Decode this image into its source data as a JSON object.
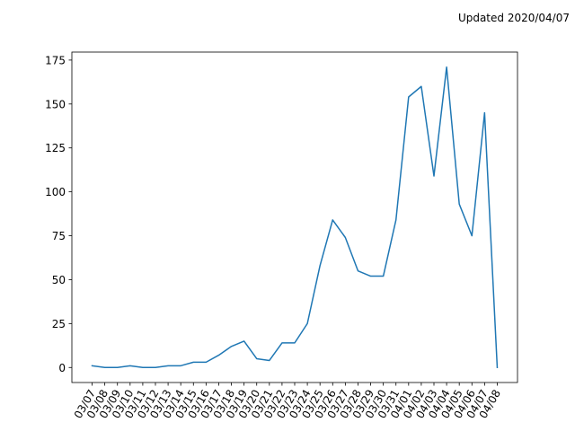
{
  "annotation": "Updated 2020/04/07",
  "chart_data": {
    "type": "line",
    "title": "",
    "xlabel": "",
    "ylabel": "",
    "categories": [
      "03/07",
      "03/08",
      "03/09",
      "03/10",
      "03/11",
      "03/12",
      "03/13",
      "03/14",
      "03/15",
      "03/16",
      "03/17",
      "03/18",
      "03/19",
      "03/20",
      "03/21",
      "03/22",
      "03/23",
      "03/24",
      "03/25",
      "03/26",
      "03/27",
      "03/28",
      "03/29",
      "03/30",
      "03/31",
      "04/01",
      "04/02",
      "04/03",
      "04/04",
      "04/05",
      "04/06",
      "04/07",
      "04/08"
    ],
    "values": [
      1,
      0,
      0,
      1,
      0,
      0,
      1,
      1,
      3,
      3,
      7,
      12,
      15,
      5,
      4,
      14,
      14,
      25,
      58,
      84,
      74,
      55,
      52,
      52,
      84,
      154,
      160,
      109,
      171,
      93,
      75,
      145,
      0
    ],
    "ylim": [
      -8.55,
      179.55
    ],
    "yticks": [
      0,
      25,
      50,
      75,
      100,
      125,
      150,
      175
    ],
    "grid": false,
    "line_color": "#1f77b4"
  }
}
